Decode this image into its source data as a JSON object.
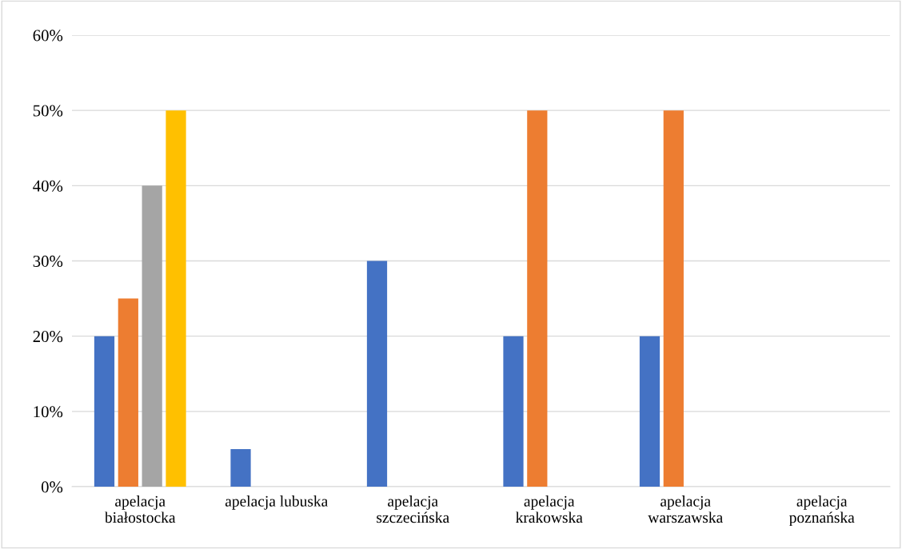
{
  "chart_data": {
    "type": "bar",
    "categories": [
      "apelacja\nbiałostocka",
      "apelacja lubuska",
      "apelacja\nszczecińska",
      "apelacja\nkrakowska",
      "apelacja\nwarszawska",
      "apelacja\npoznańska"
    ],
    "series": [
      {
        "color": "#4472c4",
        "values": [
          20,
          5,
          30,
          20,
          20,
          0
        ]
      },
      {
        "color": "#ed7d31",
        "values": [
          25,
          null,
          null,
          50,
          50,
          null
        ]
      },
      {
        "color": "#a5a5a5",
        "values": [
          40,
          null,
          null,
          null,
          null,
          null
        ]
      },
      {
        "color": "#ffc000",
        "values": [
          50,
          null,
          null,
          null,
          null,
          null
        ]
      }
    ],
    "ylim": [
      0,
      60
    ],
    "yticks": [
      {
        "value": 0,
        "label": "0%"
      },
      {
        "value": 10,
        "label": "10%"
      },
      {
        "value": 20,
        "label": "20%"
      },
      {
        "value": 30,
        "label": "30%"
      },
      {
        "value": 40,
        "label": "40%"
      },
      {
        "value": 50,
        "label": "50%"
      },
      {
        "value": 60,
        "label": "60%"
      }
    ],
    "grid": "y",
    "legend": false
  }
}
